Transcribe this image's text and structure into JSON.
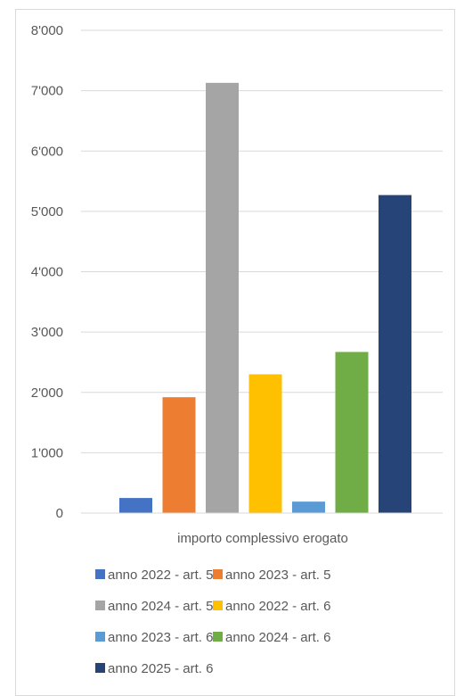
{
  "chart_data": {
    "type": "bar",
    "categories": [
      "importo complessivo erogato"
    ],
    "series": [
      {
        "name": "anno 2022 - art. 5",
        "values": [
          250
        ],
        "color": "#4472c4"
      },
      {
        "name": "anno 2023 - art. 5",
        "values": [
          1920
        ],
        "color": "#ed7d31"
      },
      {
        "name": "anno 2024 - art. 5",
        "values": [
          7130
        ],
        "color": "#a5a5a5"
      },
      {
        "name": "anno 2022 - art. 6",
        "values": [
          2300
        ],
        "color": "#ffc000"
      },
      {
        "name": "anno 2023 - art. 6",
        "values": [
          190
        ],
        "color": "#5b9bd5"
      },
      {
        "name": "anno 2024 - art. 6",
        "values": [
          2670
        ],
        "color": "#70ad47"
      },
      {
        "name": "anno 2025 - art. 6",
        "values": [
          5270
        ],
        "color": "#264478"
      }
    ],
    "ylim": [
      0,
      8000
    ],
    "yticks": [
      "0",
      "1'000",
      "2'000",
      "3'000",
      "4'000",
      "5'000",
      "6'000",
      "7'000",
      "8'000"
    ],
    "grid": true,
    "legend": "bottom",
    "gridline_color": "#d9d9d9"
  }
}
